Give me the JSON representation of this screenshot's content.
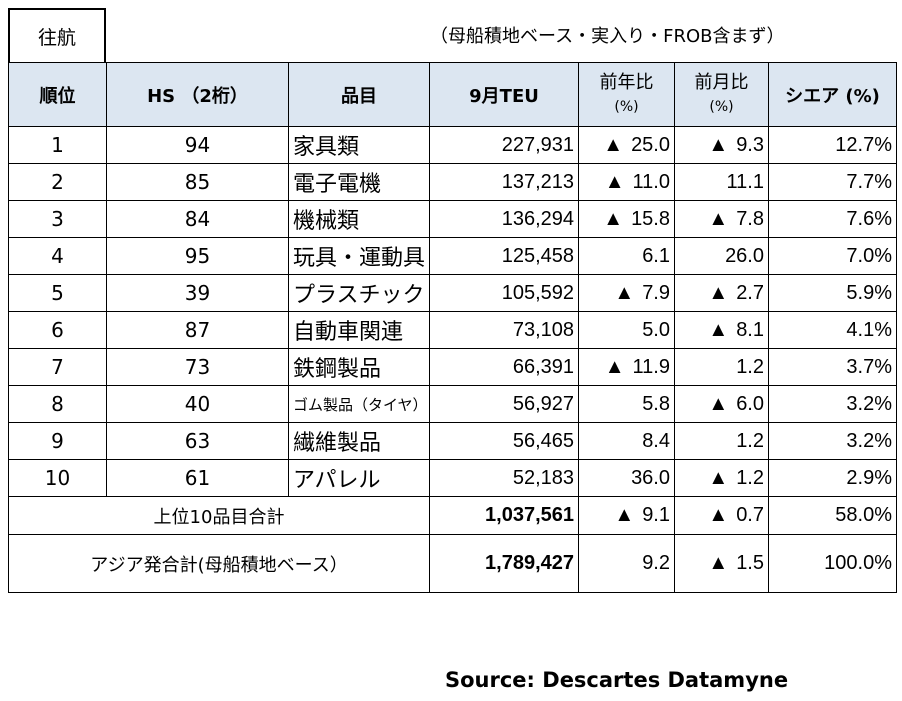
{
  "tag": "往航",
  "note": "（母船積地ベース・実入り・FROB含まず）",
  "headers": {
    "rank": "順位",
    "hs": "HS （2桁）",
    "item": "品目",
    "teu": "9月TEU",
    "yoy": "前年比",
    "yoy_unit": "(%)",
    "mom": "前月比",
    "mom_unit": "(%)",
    "share": "シエア (%)"
  },
  "triangle": "▲",
  "rows": [
    {
      "rank": "1",
      "hs": "94",
      "item": "家具類",
      "teu": "227,931",
      "yoy": "25.0",
      "yoy_neg": true,
      "mom": "9.3",
      "mom_neg": true,
      "share": "12.7%"
    },
    {
      "rank": "2",
      "hs": "85",
      "item": "電子電機",
      "teu": "137,213",
      "yoy": "11.0",
      "yoy_neg": true,
      "mom": "11.1",
      "mom_neg": false,
      "share": "7.7%"
    },
    {
      "rank": "3",
      "hs": "84",
      "item": "機械類",
      "teu": "136,294",
      "yoy": "15.8",
      "yoy_neg": true,
      "mom": "7.8",
      "mom_neg": true,
      "share": "7.6%"
    },
    {
      "rank": "4",
      "hs": "95",
      "item": "玩具・運動具",
      "teu": "125,458",
      "yoy": "6.1",
      "yoy_neg": false,
      "mom": "26.0",
      "mom_neg": false,
      "share": "7.0%"
    },
    {
      "rank": "5",
      "hs": "39",
      "item": "プラスチック",
      "teu": "105,592",
      "yoy": "7.9",
      "yoy_neg": true,
      "mom": "2.7",
      "mom_neg": true,
      "share": "5.9%"
    },
    {
      "rank": "6",
      "hs": "87",
      "item": "自動車関連",
      "teu": "73,108",
      "yoy": "5.0",
      "yoy_neg": false,
      "mom": "8.1",
      "mom_neg": true,
      "share": "4.1%"
    },
    {
      "rank": "7",
      "hs": "73",
      "item": "鉄鋼製品",
      "teu": "66,391",
      "yoy": "11.9",
      "yoy_neg": true,
      "mom": "1.2",
      "mom_neg": false,
      "share": "3.7%"
    },
    {
      "rank": "8",
      "hs": "40",
      "item": "ゴム製品（タイヤ）",
      "teu": "56,927",
      "yoy": "5.8",
      "yoy_neg": false,
      "mom": "6.0",
      "mom_neg": true,
      "share": "3.2%"
    },
    {
      "rank": "9",
      "hs": "63",
      "item": "繊維製品",
      "teu": "56,465",
      "yoy": "8.4",
      "yoy_neg": false,
      "mom": "1.2",
      "mom_neg": false,
      "share": "3.2%"
    },
    {
      "rank": "10",
      "hs": "61",
      "item": "アパレル",
      "teu": "52,183",
      "yoy": "36.0",
      "yoy_neg": false,
      "mom": "1.2",
      "mom_neg": true,
      "share": "2.9%"
    }
  ],
  "top10": {
    "label": "上位10品目合計",
    "teu": "1,037,561",
    "yoy": "9.1",
    "yoy_neg": true,
    "mom": "0.7",
    "mom_neg": true,
    "share": "58.0%"
  },
  "asia": {
    "label": "アジア発合計(母船積地ベース）",
    "teu": "1,789,427",
    "yoy": "9.2",
    "yoy_neg": false,
    "mom": "1.5",
    "mom_neg": true,
    "share": "100.0%"
  },
  "source": "Source: Descartes Datamyne"
}
